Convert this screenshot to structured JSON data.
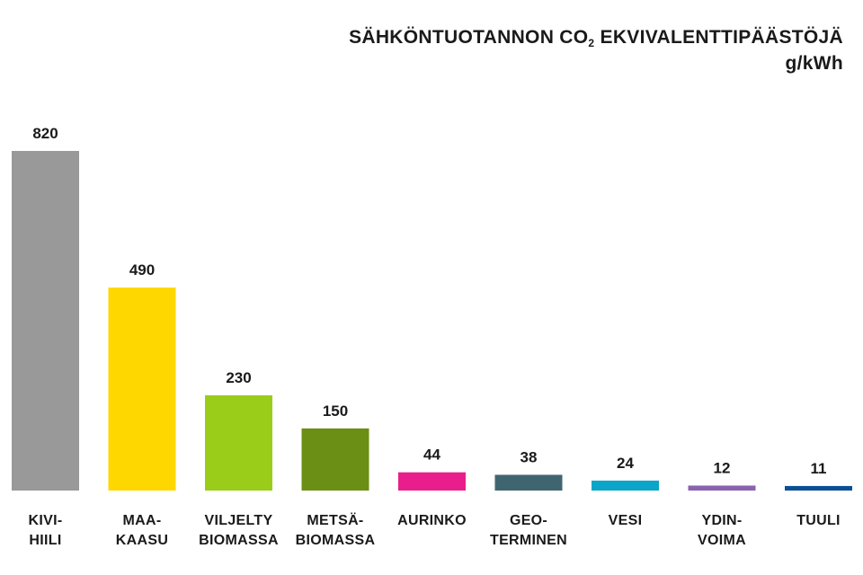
{
  "chart_data": {
    "type": "bar",
    "title": {
      "part1": "SÄHKÖNTUOTANNON CO",
      "subscript": "2",
      "part2": " EKVIVALENTTIPÄÄSTÖJÄ",
      "unit": "g/kWh"
    },
    "xlabel": "",
    "ylabel": "",
    "ylim": [
      0,
      820
    ],
    "grid": false,
    "categories": [
      [
        "KIVI-",
        "HIILI"
      ],
      [
        "MAA-",
        "KAASU"
      ],
      [
        "VILJELTY",
        "BIOMASSA"
      ],
      [
        "METSÄ-",
        "BIOMASSA"
      ],
      [
        "AURINKO"
      ],
      [
        "GEO-",
        "TERMINEN"
      ],
      [
        "VESI"
      ],
      [
        "YDIN-",
        "VOIMA"
      ],
      [
        "TUULI"
      ]
    ],
    "values": [
      820,
      490,
      230,
      150,
      44,
      38,
      24,
      12,
      11
    ],
    "colors": [
      "#999999",
      "#ffd700",
      "#9acd1a",
      "#6b8e14",
      "#e91e8c",
      "#3f6670",
      "#0aa5c8",
      "#8a63b0",
      "#0a4f96"
    ]
  }
}
